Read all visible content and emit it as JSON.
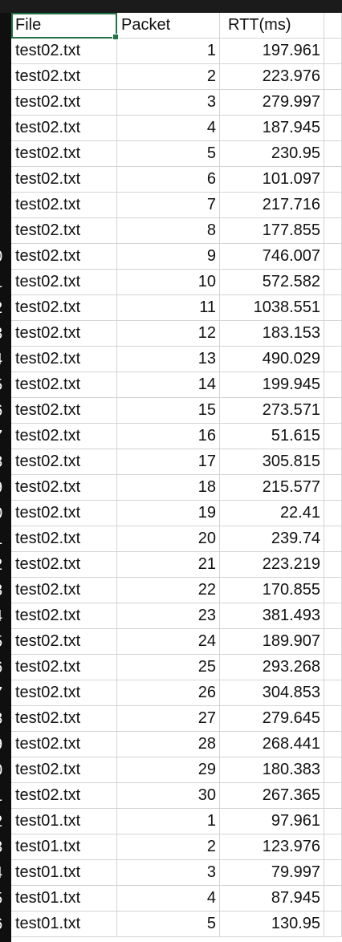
{
  "headers": {
    "file": "File",
    "packet": "Packet",
    "rtt": "RTT(ms)"
  },
  "row_numbers": [
    "",
    "",
    "",
    "",
    "",
    "",
    "",
    "",
    "",
    "0",
    "1",
    "2",
    "3",
    "4",
    "5",
    "6",
    "7",
    "8",
    "9",
    "0",
    "1",
    "2",
    "3",
    "4",
    "5",
    "6",
    "7",
    "8",
    "9",
    "0",
    "1",
    "2",
    "3",
    "4",
    "5",
    "6"
  ],
  "rows": [
    {
      "file": "test02.txt",
      "packet": "1",
      "rtt": "197.961"
    },
    {
      "file": "test02.txt",
      "packet": "2",
      "rtt": "223.976"
    },
    {
      "file": "test02.txt",
      "packet": "3",
      "rtt": "279.997"
    },
    {
      "file": "test02.txt",
      "packet": "4",
      "rtt": "187.945"
    },
    {
      "file": "test02.txt",
      "packet": "5",
      "rtt": "230.95"
    },
    {
      "file": "test02.txt",
      "packet": "6",
      "rtt": "101.097"
    },
    {
      "file": "test02.txt",
      "packet": "7",
      "rtt": "217.716"
    },
    {
      "file": "test02.txt",
      "packet": "8",
      "rtt": "177.855"
    },
    {
      "file": "test02.txt",
      "packet": "9",
      "rtt": "746.007"
    },
    {
      "file": "test02.txt",
      "packet": "10",
      "rtt": "572.582"
    },
    {
      "file": "test02.txt",
      "packet": "11",
      "rtt": "1038.551"
    },
    {
      "file": "test02.txt",
      "packet": "12",
      "rtt": "183.153"
    },
    {
      "file": "test02.txt",
      "packet": "13",
      "rtt": "490.029"
    },
    {
      "file": "test02.txt",
      "packet": "14",
      "rtt": "199.945"
    },
    {
      "file": "test02.txt",
      "packet": "15",
      "rtt": "273.571"
    },
    {
      "file": "test02.txt",
      "packet": "16",
      "rtt": "51.615"
    },
    {
      "file": "test02.txt",
      "packet": "17",
      "rtt": "305.815"
    },
    {
      "file": "test02.txt",
      "packet": "18",
      "rtt": "215.577"
    },
    {
      "file": "test02.txt",
      "packet": "19",
      "rtt": "22.41"
    },
    {
      "file": "test02.txt",
      "packet": "20",
      "rtt": "239.74"
    },
    {
      "file": "test02.txt",
      "packet": "21",
      "rtt": "223.219"
    },
    {
      "file": "test02.txt",
      "packet": "22",
      "rtt": "170.855"
    },
    {
      "file": "test02.txt",
      "packet": "23",
      "rtt": "381.493"
    },
    {
      "file": "test02.txt",
      "packet": "24",
      "rtt": "189.907"
    },
    {
      "file": "test02.txt",
      "packet": "25",
      "rtt": "293.268"
    },
    {
      "file": "test02.txt",
      "packet": "26",
      "rtt": "304.853"
    },
    {
      "file": "test02.txt",
      "packet": "27",
      "rtt": "279.645"
    },
    {
      "file": "test02.txt",
      "packet": "28",
      "rtt": "268.441"
    },
    {
      "file": "test02.txt",
      "packet": "29",
      "rtt": "180.383"
    },
    {
      "file": "test02.txt",
      "packet": "30",
      "rtt": "267.365"
    },
    {
      "file": "test01.txt",
      "packet": "1",
      "rtt": "97.961"
    },
    {
      "file": "test01.txt",
      "packet": "2",
      "rtt": "123.976"
    },
    {
      "file": "test01.txt",
      "packet": "3",
      "rtt": "79.997"
    },
    {
      "file": "test01.txt",
      "packet": "4",
      "rtt": "87.945"
    },
    {
      "file": "test01.txt",
      "packet": "5",
      "rtt": "130.95"
    }
  ],
  "colors": {
    "selection": "#217346",
    "gridline": "#d4d4d4",
    "row_header_bg": "#0f0f0f"
  }
}
